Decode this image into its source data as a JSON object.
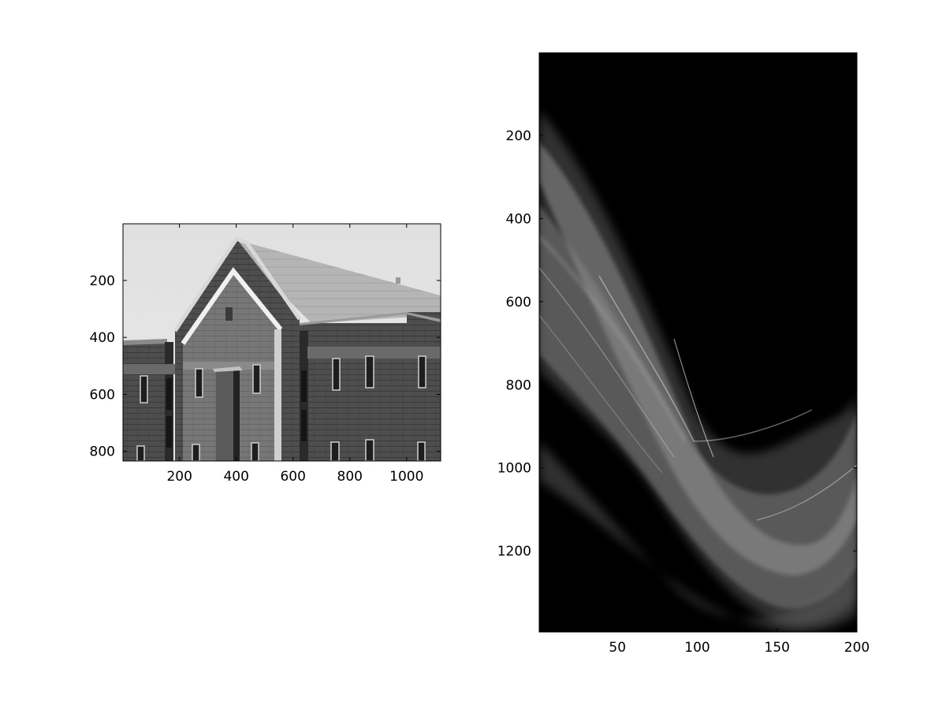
{
  "figure": {
    "background": "#ffffff",
    "panels": [
      {
        "name": "building-image",
        "content": "grayscale photograph of a brick building with a gabled roof",
        "x_ticks": [
          "200",
          "400",
          "600",
          "800",
          "1000"
        ],
        "y_ticks": [
          "200",
          "400",
          "600",
          "800"
        ],
        "x_tick_values": [
          200,
          400,
          600,
          800,
          1000
        ],
        "y_tick_values": [
          200,
          400,
          600,
          800
        ],
        "x_range": [
          1,
          1120
        ],
        "y_range": [
          1,
          834
        ]
      },
      {
        "name": "hough-transform-image",
        "content": "grayscale accumulator array on black background with bright sinusoidal bands",
        "x_ticks": [
          "50",
          "100",
          "150",
          "200"
        ],
        "y_ticks": [
          "200",
          "400",
          "600",
          "800",
          "1000",
          "1200"
        ],
        "x_tick_values": [
          50,
          100,
          150,
          200
        ],
        "y_tick_values": [
          200,
          400,
          600,
          800,
          1000,
          1200
        ],
        "x_range": [
          1,
          200
        ],
        "y_range": [
          1,
          1395
        ]
      }
    ]
  }
}
